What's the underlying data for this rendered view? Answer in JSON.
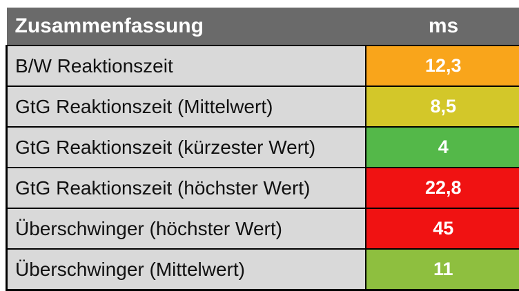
{
  "chart_data": {
    "type": "table",
    "title": "Zusammenfassung",
    "unit_header": "ms",
    "columns": [
      "Zusammenfassung",
      "ms"
    ],
    "legend_position": "none",
    "rows": [
      {
        "label": "B/W Reaktionszeit",
        "display": "12,3",
        "value_ms": 12.3,
        "color": "#F9A51B",
        "rating": "orange"
      },
      {
        "label": "GtG Reaktionszeit (Mittelwert)",
        "display": "8,5",
        "value_ms": 8.5,
        "color": "#D3C729",
        "rating": "yellow"
      },
      {
        "label": "GtG Reaktionszeit (kürzester Wert)",
        "display": "4",
        "value_ms": 4,
        "color": "#54B849",
        "rating": "green"
      },
      {
        "label": "GtG Reaktionszeit (höchster Wert)",
        "display": "22,8",
        "value_ms": 22.8,
        "color": "#F01212",
        "rating": "red"
      },
      {
        "label": "Überschwinger (höchster Wert)",
        "display": "45",
        "value_ms": 45,
        "color": "#F01212",
        "rating": "red"
      },
      {
        "label": "Überschwinger (Mittelwert)",
        "display": "11",
        "value_ms": 11,
        "color": "#8EBF3F",
        "rating": "light-green"
      }
    ]
  },
  "colors": {
    "page_bg": "#FFFFFF",
    "header_bg": "#6A6A6A",
    "header_text": "#FFFFFF",
    "label_bg": "#D9D9D9",
    "label_text": "#111111",
    "value_text": "#FFFFFF",
    "border": "#000000"
  }
}
